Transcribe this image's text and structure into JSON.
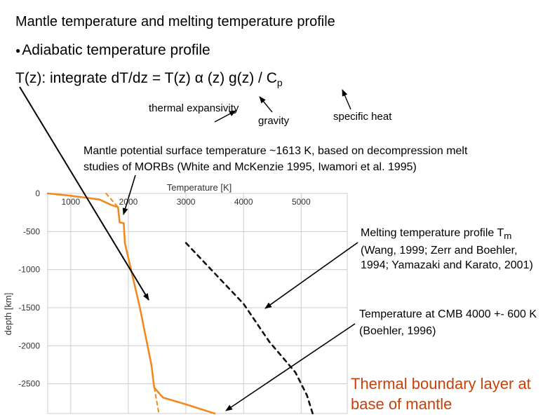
{
  "slide": {
    "title": "Mantle temperature and melting temperature profile",
    "bullet": "Adiabatic temperature profile",
    "formula_main": "T(z): integrate dT/dz = T(z) α (z) g(z) / C",
    "formula_sub": "p",
    "label_expansivity": "thermal expansivity",
    "label_gravity": "gravity",
    "label_specific_heat": "specific heat",
    "potential_text": "Mantle potential surface temperature ~1613 K, based on decompression melt studies of MORBs (White and McKenzie 1995, Iwamori et al. 1995)",
    "melting_text_1": "Melting temperature profile T",
    "melting_sub": "m",
    "melting_text_2": " (Wang, 1999; Zerr and Boehler, 1994; Yamazaki and Karato, 2001)",
    "cmb_text": "Temperature at CMB 4000 +- 600 K (Boehler, 1996)",
    "tbl_text": "Thermal boundary layer at base of mantle"
  },
  "colors": {
    "geotherm": "#f0891e",
    "melting": "#111111",
    "grid": "#cccccc",
    "highlight": "#c8400a"
  },
  "chart_data": {
    "type": "line",
    "title": "",
    "xlabel": "Temperature [K]",
    "ylabel": "depth [km]",
    "xlim": [
      600,
      5800
    ],
    "ylim": [
      -2890,
      0
    ],
    "xticks": [
      1000,
      2000,
      3000,
      4000,
      5000
    ],
    "yticks": [
      0,
      -500,
      -1000,
      -1500,
      -2000,
      -2500
    ],
    "grid": true,
    "series": [
      {
        "style": "solid-orange",
        "points": [
          [
            600,
            0
          ],
          [
            1000,
            -30
          ],
          [
            1500,
            -80
          ],
          [
            1700,
            -150
          ],
          [
            1820,
            -180
          ],
          [
            1850,
            -380
          ],
          [
            1920,
            -390
          ],
          [
            1940,
            -650
          ],
          [
            2000,
            -850
          ],
          [
            2200,
            -1500
          ],
          [
            2400,
            -2250
          ],
          [
            2450,
            -2550
          ],
          [
            2600,
            -2680
          ],
          [
            3000,
            -2770
          ],
          [
            3500,
            -2890
          ]
        ]
      },
      {
        "style": "dashed-orange",
        "points": [
          [
            1613,
            0
          ],
          [
            1820,
            -180
          ]
        ]
      },
      {
        "style": "dashed-orange",
        "points": [
          [
            2450,
            -2550
          ],
          [
            2530,
            -2890
          ]
        ]
      },
      {
        "style": "dashed-black",
        "points": [
          [
            3000,
            -650
          ],
          [
            3500,
            -1050
          ],
          [
            4000,
            -1450
          ],
          [
            4450,
            -1950
          ],
          [
            4900,
            -2350
          ],
          [
            5100,
            -2650
          ],
          [
            5200,
            -2890
          ]
        ]
      }
    ]
  }
}
